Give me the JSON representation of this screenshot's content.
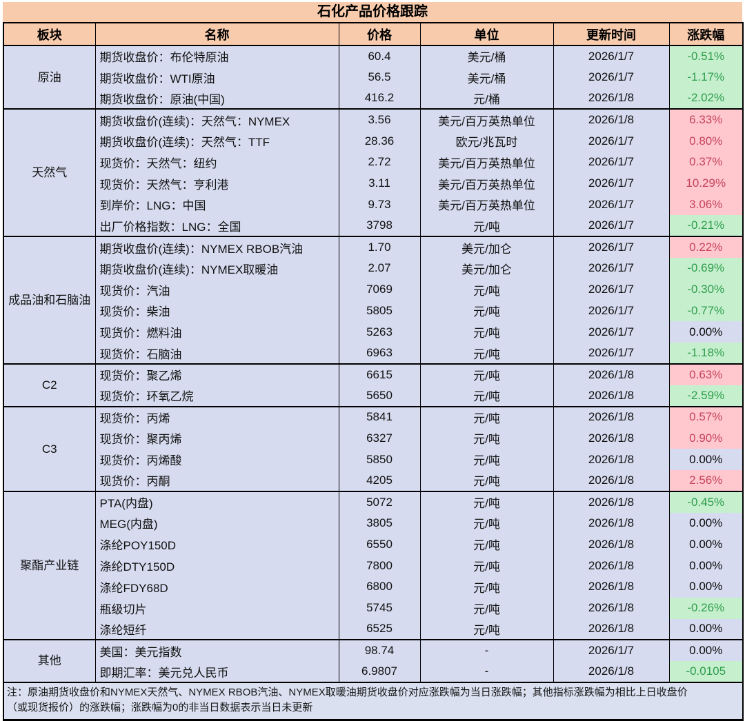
{
  "title": "石化产品价格跟踪",
  "columns": [
    "板块",
    "名称",
    "价格",
    "单位",
    "更新时间",
    "涨跌幅"
  ],
  "colors": {
    "header_bg": "#F8CBAD",
    "body_bg": "#D6DBEF",
    "positive_bg": "#FFC7CE",
    "positive_text": "#C5455C",
    "negative_bg": "#C6EFCE",
    "negative_text": "#2E9D4C",
    "border": "#000000"
  },
  "sections": [
    {
      "sector": "原油",
      "rows": [
        {
          "name": "期货收盘价：布伦特原油",
          "price": "60.4",
          "unit": "美元/桶",
          "date": "2026/1/7",
          "change": "-0.51%",
          "trend": "down"
        },
        {
          "name": "期货收盘价：WTI原油",
          "price": "56.5",
          "unit": "美元/桶",
          "date": "2026/1/7",
          "change": "-1.17%",
          "trend": "down"
        },
        {
          "name": "期货收盘价：原油(中国)",
          "price": "416.2",
          "unit": "元/桶",
          "date": "2026/1/8",
          "change": "-2.02%",
          "trend": "down"
        }
      ]
    },
    {
      "sector": "天然气",
      "rows": [
        {
          "name": "期货收盘价(连续)：天然气：NYMEX",
          "price": "3.56",
          "unit": "美元/百万英热单位",
          "date": "2026/1/8",
          "change": "6.33%",
          "trend": "up"
        },
        {
          "name": "期货收盘价(连续)：天然气：TTF",
          "price": "28.36",
          "unit": "欧元/兆瓦时",
          "date": "2026/1/7",
          "change": "0.80%",
          "trend": "up"
        },
        {
          "name": "现货价：天然气：纽约",
          "price": "2.72",
          "unit": "美元/百万英热单位",
          "date": "2026/1/7",
          "change": "0.37%",
          "trend": "up"
        },
        {
          "name": "现货价：天然气：亨利港",
          "price": "3.11",
          "unit": "美元/百万英热单位",
          "date": "2026/1/7",
          "change": "10.29%",
          "trend": "up"
        },
        {
          "name": "到岸价：LNG：中国",
          "price": "9.73",
          "unit": "美元/百万英热单位",
          "date": "2026/1/7",
          "change": "3.06%",
          "trend": "up"
        },
        {
          "name": "出厂价格指数：LNG：全国",
          "price": "3798",
          "unit": "元/吨",
          "date": "2026/1/7",
          "change": "-0.21%",
          "trend": "down"
        }
      ]
    },
    {
      "sector": "成品油和石脑油",
      "rows": [
        {
          "name": "期货收盘价(连续)：NYMEX RBOB汽油",
          "price": "1.70",
          "unit": "美元/加仑",
          "date": "2026/1/7",
          "change": "0.22%",
          "trend": "up"
        },
        {
          "name": "期货收盘价(连续)：NYMEX取暖油",
          "price": "2.07",
          "unit": "美元/加仑",
          "date": "2026/1/7",
          "change": "-0.69%",
          "trend": "down"
        },
        {
          "name": "现货价：汽油",
          "price": "7069",
          "unit": "元/吨",
          "date": "2026/1/7",
          "change": "-0.30%",
          "trend": "down"
        },
        {
          "name": "现货价：柴油",
          "price": "5805",
          "unit": "元/吨",
          "date": "2026/1/7",
          "change": "-0.77%",
          "trend": "down"
        },
        {
          "name": "现货价：燃料油",
          "price": "5263",
          "unit": "元/吨",
          "date": "2026/1/7",
          "change": "0.00%",
          "trend": "flat"
        },
        {
          "name": "现货价：石脑油",
          "price": "6963",
          "unit": "元/吨",
          "date": "2026/1/7",
          "change": "-1.18%",
          "trend": "down"
        }
      ]
    },
    {
      "sector": "C2",
      "rows": [
        {
          "name": "现货价：聚乙烯",
          "price": "6615",
          "unit": "元/吨",
          "date": "2026/1/8",
          "change": "0.63%",
          "trend": "up"
        },
        {
          "name": "现货价：环氧乙烷",
          "price": "5650",
          "unit": "元/吨",
          "date": "2026/1/8",
          "change": "-2.59%",
          "trend": "down"
        }
      ]
    },
    {
      "sector": "C3",
      "rows": [
        {
          "name": "现货价：丙烯",
          "price": "5841",
          "unit": "元/吨",
          "date": "2026/1/8",
          "change": "0.57%",
          "trend": "up"
        },
        {
          "name": "现货价：聚丙烯",
          "price": "6327",
          "unit": "元/吨",
          "date": "2026/1/8",
          "change": "0.90%",
          "trend": "up"
        },
        {
          "name": "现货价：丙烯酸",
          "price": "5850",
          "unit": "元/吨",
          "date": "2026/1/8",
          "change": "0.00%",
          "trend": "flat"
        },
        {
          "name": "现货价：丙酮",
          "price": "4205",
          "unit": "元/吨",
          "date": "2026/1/8",
          "change": "2.56%",
          "trend": "up"
        }
      ]
    },
    {
      "sector": "聚酯产业链",
      "rows": [
        {
          "name": "PTA(内盘)",
          "price": "5072",
          "unit": "元/吨",
          "date": "2026/1/8",
          "change": "-0.45%",
          "trend": "down"
        },
        {
          "name": "MEG(内盘)",
          "price": "3805",
          "unit": "元/吨",
          "date": "2026/1/8",
          "change": "0.00%",
          "trend": "flat"
        },
        {
          "name": "涤纶POY150D",
          "price": "6550",
          "unit": "元/吨",
          "date": "2026/1/8",
          "change": "0.00%",
          "trend": "flat"
        },
        {
          "name": "涤纶DTY150D",
          "price": "7800",
          "unit": "元/吨",
          "date": "2026/1/8",
          "change": "0.00%",
          "trend": "flat"
        },
        {
          "name": "涤纶FDY68D",
          "price": "6800",
          "unit": "元/吨",
          "date": "2026/1/8",
          "change": "0.00%",
          "trend": "flat"
        },
        {
          "name": "瓶级切片",
          "price": "5745",
          "unit": "元/吨",
          "date": "2026/1/8",
          "change": "-0.26%",
          "trend": "down"
        },
        {
          "name": "涤纶短纤",
          "price": "6525",
          "unit": "元/吨",
          "date": "2026/1/8",
          "change": "0.00%",
          "trend": "flat"
        }
      ]
    },
    {
      "sector": "其他",
      "rows": [
        {
          "name": "美国：美元指数",
          "price": "98.74",
          "unit": "-",
          "date": "2026/1/7",
          "change": "0.00%",
          "trend": "flat"
        },
        {
          "name": "即期汇率：美元兑人民币",
          "price": "6.9807",
          "unit": "-",
          "date": "2026/1/8",
          "change": "-0.0105",
          "trend": "down"
        }
      ]
    }
  ],
  "footnote": {
    "line1": "注：原油期货收盘价和NYMEX天然气、NYMEX RBOB汽油、NYMEX取暖油期货收盘价对应涨跌幅为当日涨跌幅；其他指标涨跌幅为相比上日收盘价",
    "line2": "（或现货报价）的涨跌幅；涨跌幅为0的非当日数据表示当日未更新"
  }
}
